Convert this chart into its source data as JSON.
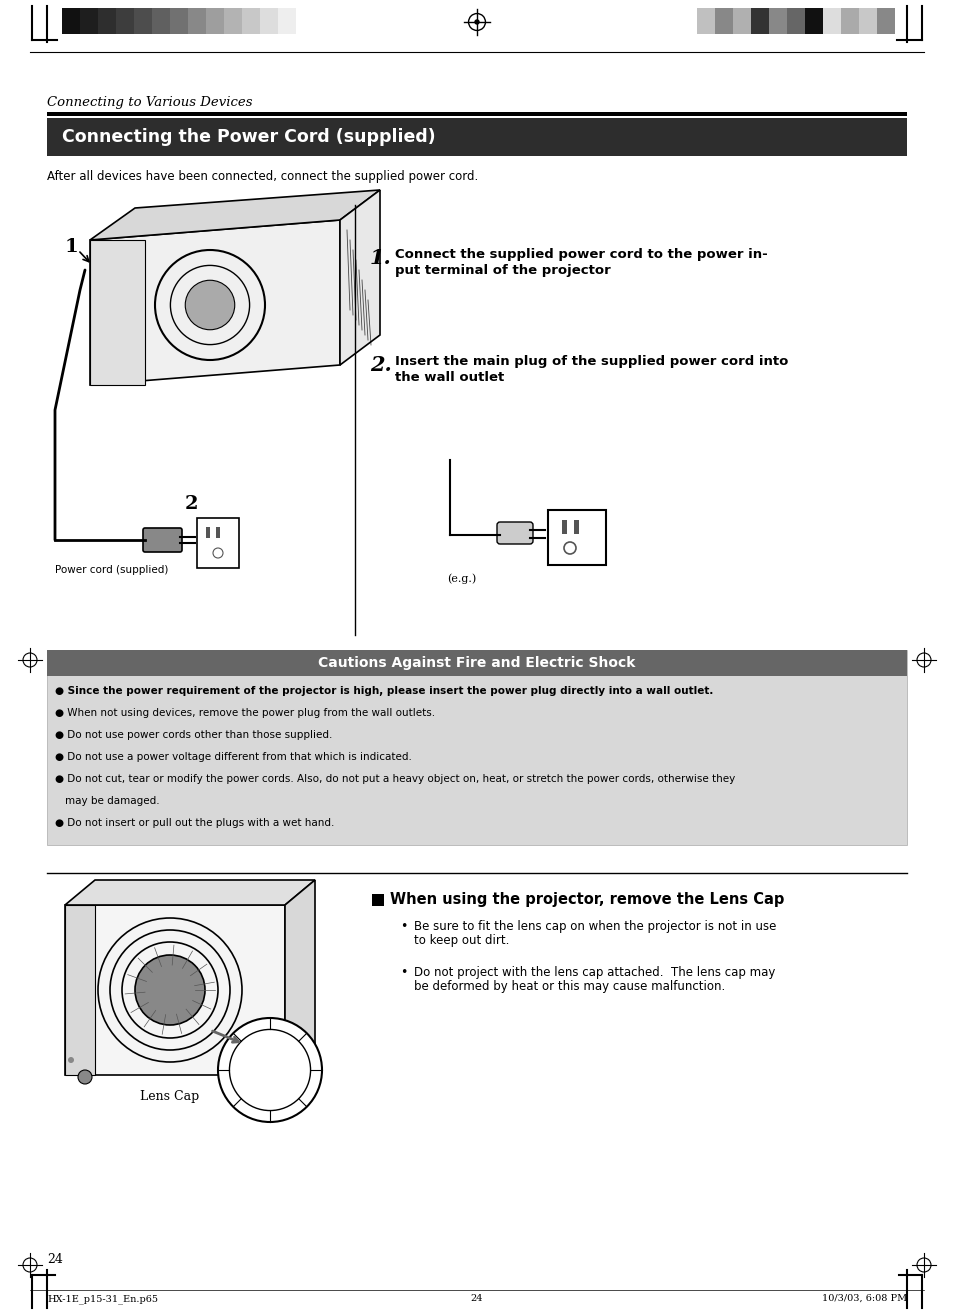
{
  "page_bg": "#ffffff",
  "page_width": 9.54,
  "page_height": 13.13,
  "section_title_bg": "#2d2d2d",
  "section_title_text": "Connecting the Power Cord (supplied)",
  "section_title_color": "#ffffff",
  "italic_header": "Connecting to Various Devices",
  "subtitle": "After all devices have been connected, connect the supplied power cord.",
  "step1_text_a": "Connect the supplied power cord to the power in-",
  "step1_text_b": "put terminal of the projector",
  "step2_text_a": "Insert the main plug of the supplied power cord into",
  "step2_text_b": "the wall outlet",
  "eg_label": "(e.g.)",
  "power_cord_label": "Power cord (supplied)",
  "caution_title": "Cautions Against Fire and Electric Shock",
  "caution_title_bg": "#666666",
  "caution_title_color": "#ffffff",
  "caution_box_bg": "#d8d8d8",
  "caution_texts": [
    [
      "Since the power requirement of the projector is high, please insert the power plug directly into a wall outlet.",
      true
    ],
    [
      "When not using devices, remove the power plug from the wall outlets.",
      false
    ],
    [
      "Do not use power cords other than those supplied.",
      false
    ],
    [
      "Do not use a power voltage different from that which is indicated.",
      false
    ],
    [
      "Do not cut, tear or modify the power cords. Also, do not put a heavy object on, heat, or stretch the power cords, otherwise they",
      false
    ],
    [
      "   may be damaged.",
      false
    ],
    [
      "Do not insert or pull out the plugs with a wet hand.",
      false
    ]
  ],
  "lens_cap_title": "When using the projector, remove the Lens Cap",
  "lens_cap_bullets": [
    "Be sure to fit the lens cap on when the projector is not in use\nto keep out dirt.",
    "Do not project with the lens cap attached.  The lens cap may\nbe deformed by heat or this may cause malfunction."
  ],
  "lens_cap_label": "Lens Cap",
  "page_number": "24",
  "footer_left": "HX-1E_p15-31_En.p65",
  "footer_center": "24",
  "footer_right": "10/3/03, 6:08 PM",
  "swatch_left": [
    "#111111",
    "#1e1e1e",
    "#2e2e2e",
    "#3d3d3d",
    "#4d4d4d",
    "#606060",
    "#717171",
    "#888888",
    "#9e9e9e",
    "#b3b3b3",
    "#c8c8c8",
    "#dddddd",
    "#eeeeee",
    "#ffffff"
  ],
  "swatch_right": [
    "#c0c0c0",
    "#888888",
    "#b0b0b0",
    "#333333",
    "#888888",
    "#666666",
    "#111111",
    "#dddddd",
    "#aaaaaa",
    "#c8c8c8",
    "#888888"
  ],
  "text_color": "#000000"
}
